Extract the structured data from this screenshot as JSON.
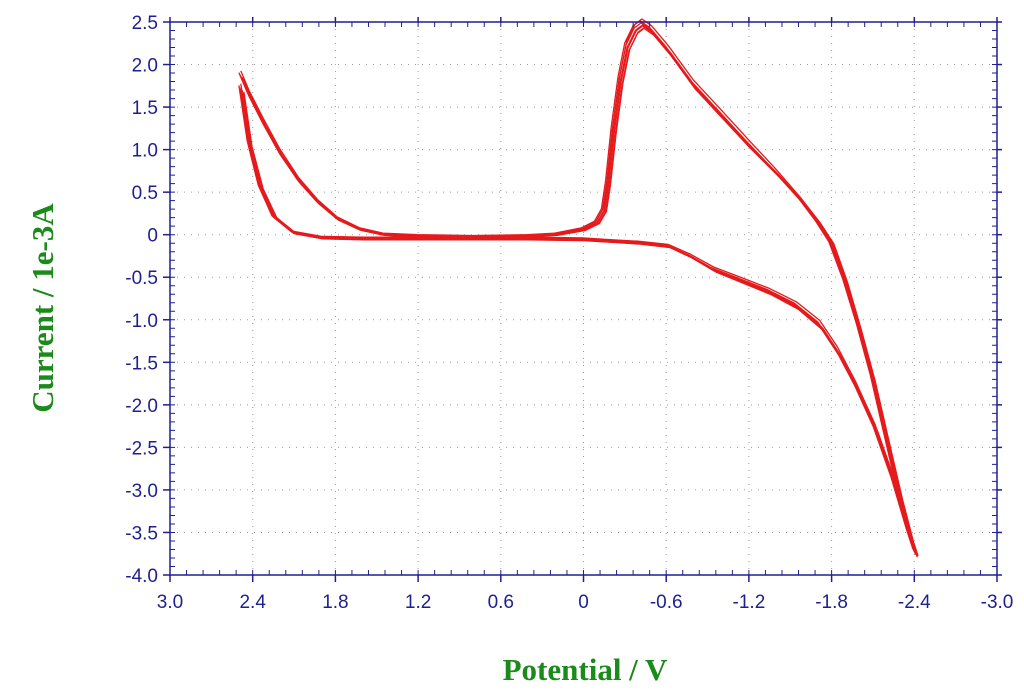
{
  "chart_data": {
    "type": "line",
    "xlabel": "Potential / V",
    "ylabel": "Current / 1e-3A",
    "xlim": [
      3.0,
      -3.0
    ],
    "ylim": [
      -4.0,
      2.5
    ],
    "x_direction": "decreasing",
    "x_ticks": [
      3.0,
      2.4,
      1.8,
      1.2,
      0.6,
      0,
      -0.6,
      -1.2,
      -1.8,
      -2.4,
      -3.0
    ],
    "x_tick_labels": [
      "3.0",
      "2.4",
      "1.8",
      "1.2",
      "0.6",
      "0",
      "-0.6",
      "-1.2",
      "-1.8",
      "-2.4",
      "-3.0"
    ],
    "y_ticks": [
      2.5,
      2.0,
      1.5,
      1.0,
      0.5,
      0,
      -0.5,
      -1.0,
      -1.5,
      -2.0,
      -2.5,
      -3.0,
      -3.5,
      -4.0
    ],
    "y_tick_labels": [
      "2.5",
      "2.0",
      "1.5",
      "1.0",
      "0.5",
      "0",
      "-0.5",
      "-1.0",
      "-1.5",
      "-2.0",
      "-2.5",
      "-3.0",
      "-3.5",
      "-4.0"
    ],
    "grid": "dotted",
    "colors": {
      "curve": "#e41a1c",
      "axis": "#1f1f8f",
      "label": "#1a8a1a"
    },
    "series": [
      {
        "points": [
          [
            2.48,
            1.85
          ],
          [
            2.42,
            1.62
          ],
          [
            2.32,
            1.3
          ],
          [
            2.2,
            0.95
          ],
          [
            2.06,
            0.62
          ],
          [
            1.92,
            0.37
          ],
          [
            1.78,
            0.18
          ],
          [
            1.62,
            0.06
          ],
          [
            1.45,
            0.0
          ],
          [
            1.2,
            -0.02
          ],
          [
            0.8,
            -0.03
          ],
          [
            0.4,
            -0.02
          ],
          [
            0.2,
            0.0
          ],
          [
            0.0,
            0.06
          ],
          [
            -0.1,
            0.14
          ],
          [
            -0.15,
            0.28
          ],
          [
            -0.18,
            0.6
          ],
          [
            -0.22,
            1.2
          ],
          [
            -0.27,
            1.8
          ],
          [
            -0.32,
            2.2
          ],
          [
            -0.38,
            2.4
          ],
          [
            -0.43,
            2.46
          ],
          [
            -0.5,
            2.38
          ],
          [
            -0.62,
            2.15
          ],
          [
            -0.8,
            1.75
          ],
          [
            -1.0,
            1.4
          ],
          [
            -1.2,
            1.05
          ],
          [
            -1.4,
            0.72
          ],
          [
            -1.58,
            0.4
          ],
          [
            -1.7,
            0.15
          ],
          [
            -1.8,
            -0.1
          ],
          [
            -1.9,
            -0.55
          ],
          [
            -2.0,
            -1.1
          ],
          [
            -2.1,
            -1.7
          ],
          [
            -2.2,
            -2.4
          ],
          [
            -2.3,
            -3.1
          ],
          [
            -2.38,
            -3.6
          ],
          [
            -2.41,
            -3.75
          ],
          [
            -2.36,
            -3.5
          ],
          [
            -2.25,
            -2.9
          ],
          [
            -2.12,
            -2.3
          ],
          [
            -1.98,
            -1.8
          ],
          [
            -1.85,
            -1.4
          ],
          [
            -1.72,
            -1.08
          ],
          [
            -1.55,
            -0.85
          ],
          [
            -1.35,
            -0.68
          ],
          [
            -1.15,
            -0.55
          ],
          [
            -0.95,
            -0.42
          ],
          [
            -0.78,
            -0.26
          ],
          [
            -0.62,
            -0.14
          ],
          [
            -0.4,
            -0.1
          ],
          [
            -0.2,
            -0.08
          ],
          [
            0.0,
            -0.06
          ],
          [
            0.4,
            -0.05
          ],
          [
            0.8,
            -0.05
          ],
          [
            1.2,
            -0.05
          ],
          [
            1.6,
            -0.05
          ],
          [
            1.9,
            -0.04
          ],
          [
            2.1,
            0.02
          ],
          [
            2.24,
            0.2
          ],
          [
            2.34,
            0.55
          ],
          [
            2.42,
            1.05
          ],
          [
            2.48,
            1.7
          ]
        ]
      }
    ]
  }
}
